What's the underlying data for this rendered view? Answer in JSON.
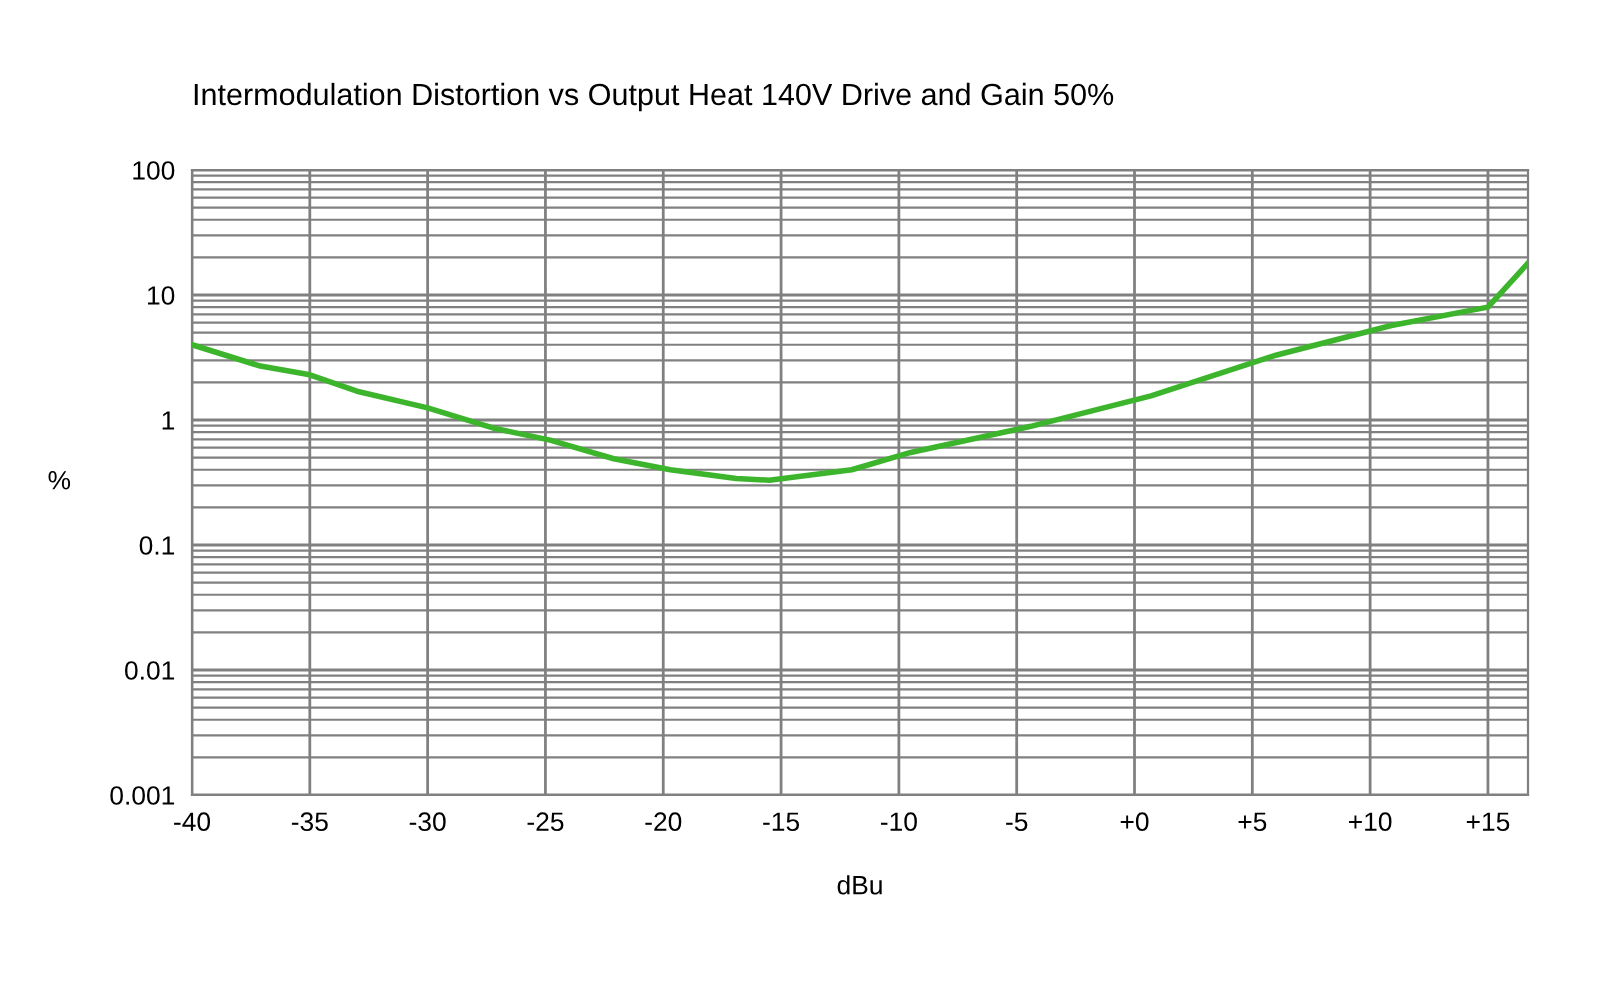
{
  "chart_data": {
    "type": "line",
    "title": "Intermodulation Distortion vs Output Heat 140V Drive and Gain 50%",
    "xlabel": "dBu",
    "ylabel": "%",
    "x": [
      -40,
      -37.1,
      -35,
      -33,
      -30,
      -27.2,
      -24.8,
      -22.1,
      -19.7,
      -16.9,
      -15.5,
      -12,
      -9.5,
      -4.4,
      0.7,
      6,
      10.9,
      15,
      16.7
    ],
    "series": [
      {
        "color": "#3cb52c",
        "values": [
          4.0,
          2.7,
          2.3,
          1.7,
          1.25,
          0.86,
          0.69,
          0.49,
          0.4,
          0.34,
          0.33,
          0.4,
          0.55,
          0.89,
          1.56,
          3.3,
          5.7,
          8.0,
          18
        ]
      }
    ],
    "log": "y",
    "xlim": [
      -40,
      16.7
    ],
    "ylim": [
      0.001,
      100
    ],
    "xticks": [
      -40,
      -35,
      -30,
      -25,
      -20,
      -15,
      -10,
      -5,
      {
        "value": 0,
        "label": "+0"
      },
      {
        "value": 5,
        "label": "+5"
      },
      {
        "value": 10,
        "label": "+10"
      },
      {
        "value": 15,
        "label": "+15"
      }
    ],
    "yticks": [
      0.001,
      0.01,
      0.1,
      1,
      10,
      100
    ],
    "grid": true,
    "marker": "none",
    "line_style": "solid"
  }
}
